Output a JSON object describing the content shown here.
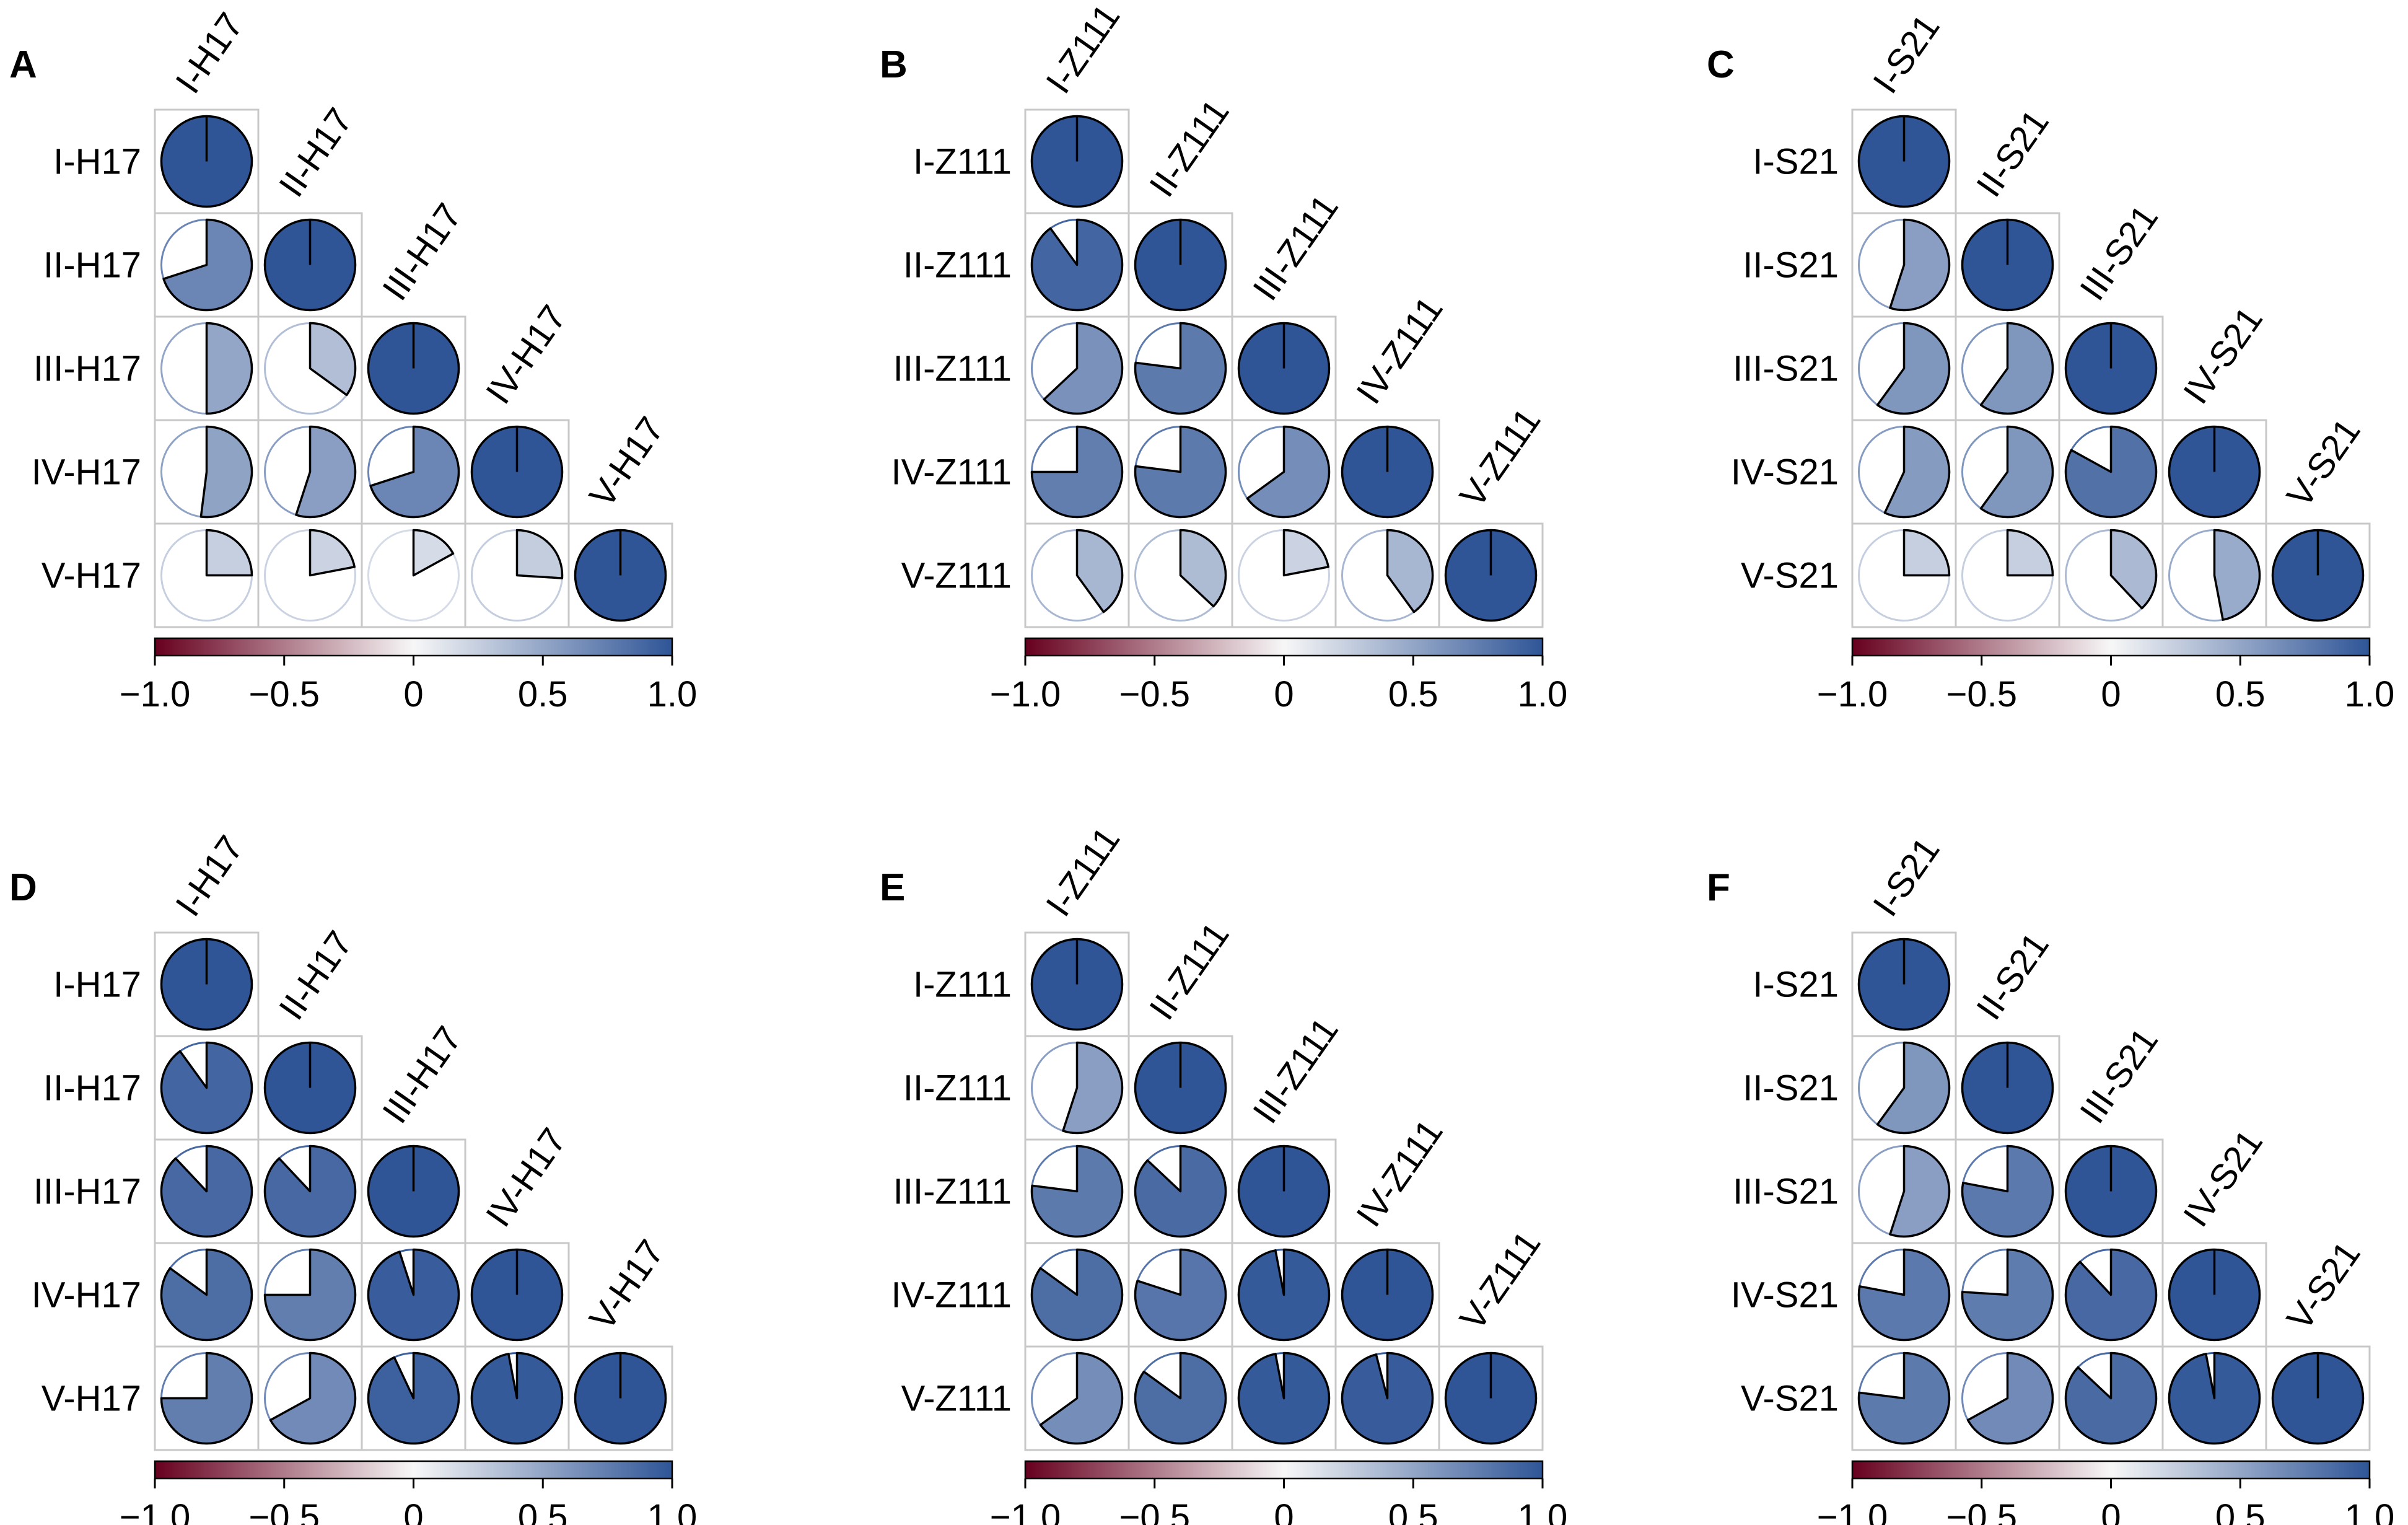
{
  "figure": {
    "panels_count": 6,
    "colors": {
      "negative": "#67001F",
      "neutral": "#F7F7F7",
      "positive": "#2F5597",
      "cell_border": "#C8C8C8",
      "pie_outline": "#000000"
    },
    "colorbar": {
      "min": -1.0,
      "max": 1.0,
      "ticks": [
        "−1.0",
        "−0.5",
        "0",
        "0.5",
        "1.0"
      ]
    }
  },
  "chart_data": [
    {
      "type": "heatmap",
      "panel": "A",
      "glyph": "pie",
      "labels": [
        "I-H17",
        "II-H17",
        "III-H17",
        "IV-H17",
        "V-H17"
      ],
      "title": "",
      "xlabel": "",
      "ylabel": "",
      "correlations": [
        [
          1.0,
          null,
          null,
          null,
          null
        ],
        [
          0.7,
          1.0,
          null,
          null,
          null
        ],
        [
          0.5,
          0.35,
          1.0,
          null,
          null
        ],
        [
          0.52,
          0.55,
          0.7,
          1.0,
          null
        ],
        [
          0.25,
          0.22,
          0.17,
          0.26,
          1.0
        ]
      ],
      "colorbar_range": [
        -1.0,
        1.0
      ]
    },
    {
      "type": "heatmap",
      "panel": "B",
      "glyph": "pie",
      "labels": [
        "I-Z111",
        "II-Z111",
        "III-Z111",
        "IV-Z111",
        "V-Z111"
      ],
      "title": "",
      "xlabel": "",
      "ylabel": "",
      "correlations": [
        [
          1.0,
          null,
          null,
          null,
          null
        ],
        [
          0.9,
          1.0,
          null,
          null,
          null
        ],
        [
          0.63,
          0.77,
          1.0,
          null,
          null
        ],
        [
          0.75,
          0.77,
          0.65,
          1.0,
          null
        ],
        [
          0.4,
          0.37,
          0.22,
          0.4,
          1.0
        ]
      ],
      "colorbar_range": [
        -1.0,
        1.0
      ]
    },
    {
      "type": "heatmap",
      "panel": "C",
      "glyph": "pie",
      "labels": [
        "I-S21",
        "II-S21",
        "III-S21",
        "IV-S21",
        "V-S21"
      ],
      "title": "",
      "xlabel": "",
      "ylabel": "",
      "correlations": [
        [
          1.0,
          null,
          null,
          null,
          null
        ],
        [
          0.55,
          1.0,
          null,
          null,
          null
        ],
        [
          0.6,
          0.6,
          1.0,
          null,
          null
        ],
        [
          0.57,
          0.6,
          0.83,
          1.0,
          null
        ],
        [
          0.25,
          0.25,
          0.38,
          0.47,
          1.0
        ]
      ],
      "colorbar_range": [
        -1.0,
        1.0
      ]
    },
    {
      "type": "heatmap",
      "panel": "D",
      "glyph": "pie",
      "labels": [
        "I-H17",
        "II-H17",
        "III-H17",
        "IV-H17",
        "V-H17"
      ],
      "title": "",
      "xlabel": "",
      "ylabel": "",
      "correlations": [
        [
          1.0,
          null,
          null,
          null,
          null
        ],
        [
          0.9,
          1.0,
          null,
          null,
          null
        ],
        [
          0.88,
          0.88,
          1.0,
          null,
          null
        ],
        [
          0.85,
          0.75,
          0.95,
          1.0,
          null
        ],
        [
          0.75,
          0.67,
          0.93,
          0.97,
          1.0
        ]
      ],
      "colorbar_range": [
        -1.0,
        1.0
      ]
    },
    {
      "type": "heatmap",
      "panel": "E",
      "glyph": "pie",
      "labels": [
        "I-Z111",
        "II-Z111",
        "III-Z111",
        "IV-Z111",
        "V-Z111"
      ],
      "title": "",
      "xlabel": "",
      "ylabel": "",
      "correlations": [
        [
          1.0,
          null,
          null,
          null,
          null
        ],
        [
          0.55,
          1.0,
          null,
          null,
          null
        ],
        [
          0.77,
          0.87,
          1.0,
          null,
          null
        ],
        [
          0.85,
          0.8,
          0.97,
          1.0,
          null
        ],
        [
          0.65,
          0.85,
          0.97,
          0.96,
          1.0
        ]
      ],
      "colorbar_range": [
        -1.0,
        1.0
      ]
    },
    {
      "type": "heatmap",
      "panel": "F",
      "glyph": "pie",
      "labels": [
        "I-S21",
        "II-S21",
        "III-S21",
        "IV-S21",
        "V-S21"
      ],
      "title": "",
      "xlabel": "",
      "ylabel": "",
      "correlations": [
        [
          1.0,
          null,
          null,
          null,
          null
        ],
        [
          0.6,
          1.0,
          null,
          null,
          null
        ],
        [
          0.55,
          0.78,
          1.0,
          null,
          null
        ],
        [
          0.78,
          0.76,
          0.88,
          1.0,
          null
        ],
        [
          0.77,
          0.67,
          0.87,
          0.97,
          1.0
        ]
      ],
      "colorbar_range": [
        -1.0,
        1.0
      ]
    }
  ]
}
